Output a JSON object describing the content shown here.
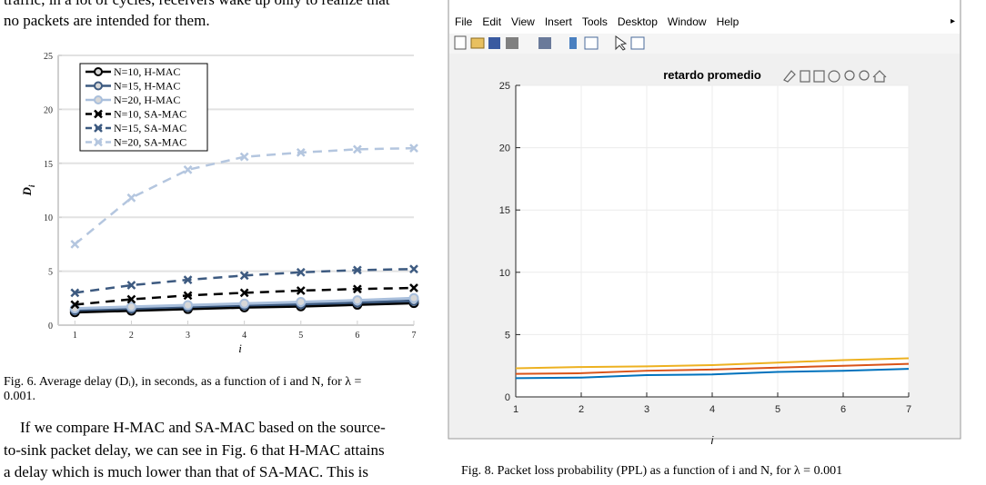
{
  "paper": {
    "top_lines": [
      "traffic, in a lot of cycles, receivers wake up only to realize that",
      "no packets are intended for them."
    ],
    "fig6_caption": [
      "Fig. 6.  Average delay (Dᵢ), in seconds, as a function of i and N, for λ =",
      "0.001."
    ],
    "paragraph": [
      "If we compare H-MAC and SA-MAC based on the source-",
      "to-sink packet delay, we can see in Fig. 6 that H-MAC attains",
      "a delay which is much lower than that of SA-MAC. This is"
    ],
    "fig8_caption": "Fig. 8.  Packet loss probability (PPL) as a function of i and N, for λ = 0.001"
  },
  "window": {
    "menu": [
      "File",
      "Edit",
      "View",
      "Insert",
      "Tools",
      "Desktop",
      "Window",
      "Help"
    ]
  },
  "chart_data": [
    {
      "type": "line",
      "xlabel": "i",
      "ylabel": "D",
      "ylabel_sub": "i",
      "x": [
        1,
        2,
        3,
        4,
        5,
        6,
        7
      ],
      "xlim": [
        0.85,
        7
      ],
      "xticks": [
        1,
        2,
        3,
        4,
        5,
        6,
        7
      ],
      "ylim": [
        0,
        25
      ],
      "yticks": [
        0,
        5,
        10,
        15,
        20,
        25
      ],
      "grid": true,
      "legend": "upper left",
      "series": [
        {
          "name": "N=10, H-MAC",
          "color": "#000000",
          "marker": "o",
          "dash": false,
          "values": [
            1.2,
            1.35,
            1.5,
            1.65,
            1.75,
            1.9,
            2.05
          ]
        },
        {
          "name": "N=15, H-MAC",
          "color": "#3d5a80",
          "marker": "o",
          "dash": false,
          "values": [
            1.4,
            1.55,
            1.7,
            1.85,
            1.95,
            2.1,
            2.25
          ]
        },
        {
          "name": "N=20, H-MAC",
          "color": "#a9bfdc",
          "marker": "o",
          "dash": false,
          "values": [
            1.55,
            1.7,
            1.85,
            2.0,
            2.15,
            2.3,
            2.5
          ]
        },
        {
          "name": "N=10, SA-MAC",
          "color": "#000000",
          "marker": "x",
          "dash": true,
          "values": [
            1.9,
            2.4,
            2.75,
            3.0,
            3.2,
            3.35,
            3.45
          ]
        },
        {
          "name": "N=15, SA-MAC",
          "color": "#3d5a80",
          "marker": "x",
          "dash": true,
          "values": [
            3.0,
            3.7,
            4.2,
            4.6,
            4.9,
            5.1,
            5.2
          ]
        },
        {
          "name": "N=20, SA-MAC",
          "color": "#b4c6df",
          "marker": "x",
          "dash": true,
          "values": [
            7.5,
            11.8,
            14.4,
            15.6,
            16.0,
            16.3,
            16.4
          ]
        }
      ]
    },
    {
      "type": "line",
      "title": "retardo promedio",
      "xlabel": "i",
      "x": [
        1,
        2,
        3,
        4,
        5,
        6,
        7
      ],
      "xlim": [
        1,
        7
      ],
      "xticks": [
        1,
        2,
        3,
        4,
        5,
        6,
        7
      ],
      "ylim": [
        0,
        25
      ],
      "yticks": [
        0,
        5,
        10,
        15,
        20,
        25
      ],
      "grid": true,
      "series": [
        {
          "color": "#0072bd",
          "values": [
            1.5,
            1.55,
            1.75,
            1.8,
            2.0,
            2.1,
            2.25
          ]
        },
        {
          "color": "#d95319",
          "values": [
            1.85,
            1.9,
            2.1,
            2.2,
            2.35,
            2.5,
            2.65
          ]
        },
        {
          "color": "#edb120",
          "values": [
            2.3,
            2.4,
            2.45,
            2.55,
            2.75,
            2.95,
            3.1
          ]
        }
      ]
    }
  ]
}
